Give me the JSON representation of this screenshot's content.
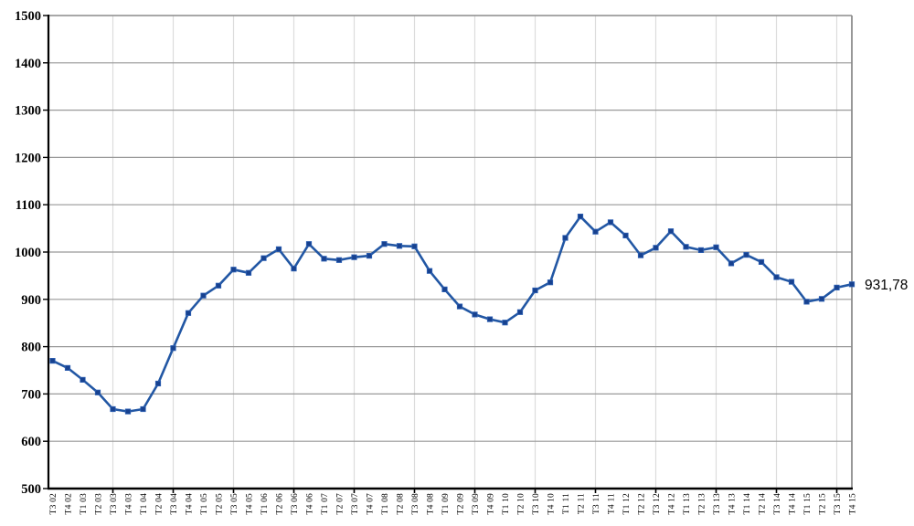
{
  "chart_data": {
    "type": "line",
    "title": "",
    "xlabel": "",
    "ylabel": "",
    "legend": "none",
    "grid": "on",
    "ylim": [
      500,
      1500
    ],
    "ytick_step": 100,
    "x_gridline_start": 4,
    "x_gridline_every": 4,
    "categories": [
      "T3 02",
      "T4 02",
      "T1 03",
      "T2 03",
      "T3 03",
      "T4 03",
      "T1 04",
      "T2 04",
      "T3 04",
      "T4 04",
      "T1 05",
      "T2 05",
      "T3 05",
      "T4 05",
      "T1 06",
      "T2 06",
      "T3 06",
      "T4 06",
      "T1 07",
      "T2 07",
      "T3 07",
      "T4 07",
      "T1 08",
      "T2 08",
      "T3 08",
      "T4 08",
      "T1 09",
      "T2 09",
      "T3 09",
      "T4 09",
      "T1 10",
      "T2 10",
      "T3 10",
      "T4 10",
      "T1 11",
      "T2 11",
      "T3 11",
      "T4 11",
      "T1 12",
      "T2 12",
      "T3 12",
      "T4 12",
      "T1 13",
      "T2 13",
      "T3 13",
      "T4 13",
      "T1 14",
      "T2 14",
      "T3 14",
      "T4 14",
      "T1 15",
      "T2 15",
      "T3 15",
      "T4 15"
    ],
    "values": [
      770,
      755,
      730,
      703,
      668,
      663,
      668,
      722,
      797,
      871,
      908,
      929,
      963,
      956,
      987,
      1006,
      965,
      1017,
      986,
      983,
      989,
      992,
      1017,
      1013,
      1012,
      960,
      921,
      885,
      868,
      858,
      851,
      873,
      919,
      936,
      1030,
      1075,
      1043,
      1063,
      1035,
      993,
      1009,
      1044,
      1011,
      1004,
      1010,
      976,
      994,
      979,
      947,
      937,
      895,
      901,
      925,
      931.78
    ],
    "end_label": "931,78",
    "colors": {
      "line": "#2257A4",
      "marker": "#17418F",
      "marker_edge": "#2F62B5",
      "h_grid": "#999999",
      "v_grid": "#DCDCDC",
      "axis": "#000000",
      "frame": "#8C8C8C",
      "text": "#000000"
    }
  }
}
